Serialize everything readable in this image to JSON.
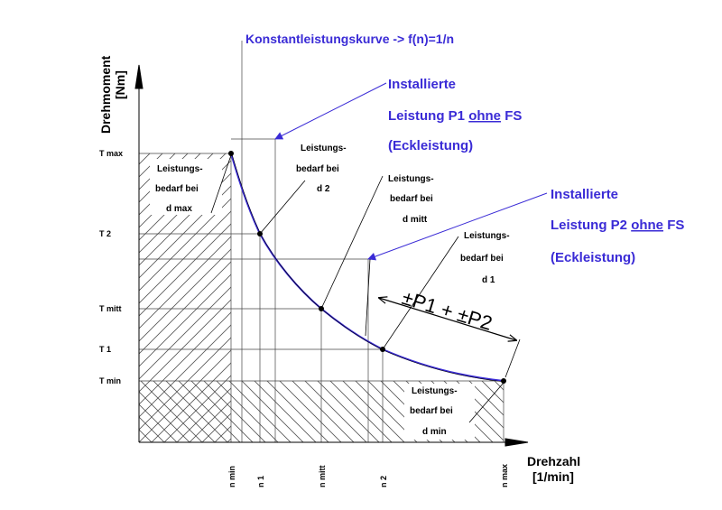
{
  "y_axis": {
    "title_line1": "Drehmoment",
    "title_line2": "[Nm]"
  },
  "x_axis": {
    "title_line1": "Drehzahl",
    "title_line2": "[1/min]"
  },
  "y_ticks": [
    "T max",
    "T 2",
    "T mitt",
    "T 1",
    "T min"
  ],
  "x_ticks": [
    "n min",
    "n 1",
    "n mitt",
    "n 2",
    "n max"
  ],
  "curve_title": "Konstantleistungskurve -> f(n)=1/n",
  "p1_label": {
    "line1": "Installierte",
    "line2_pre": "Leistung P1 ",
    "line2_u": "ohne",
    "line2_post": " FS",
    "line3": "(Eckleistung)"
  },
  "p2_label": {
    "line1": "Installierte",
    "line2_pre": "Leistung P2 ",
    "line2_u": "ohne",
    "line2_post": " FS",
    "line3": "(Eckleistung)"
  },
  "annotations": {
    "dmax": [
      "Leistungs-",
      "bedarf bei",
      "d max"
    ],
    "d2": [
      "Leistungs-",
      "bedarf bei",
      "d 2"
    ],
    "dmitt": [
      "Leistungs-",
      "bedarf bei",
      "d mitt"
    ],
    "d1": [
      "Leistungs-",
      "bedarf bei",
      "d 1"
    ],
    "dmin": [
      "Leistungs-",
      "bedarf bei",
      "d min"
    ]
  },
  "range_label": "±P1 + ±P2",
  "colors": {
    "curve": "#3a2bd6",
    "label": "#3a2bd6",
    "line": "#000000",
    "hatch": "#6b6b6b"
  }
}
